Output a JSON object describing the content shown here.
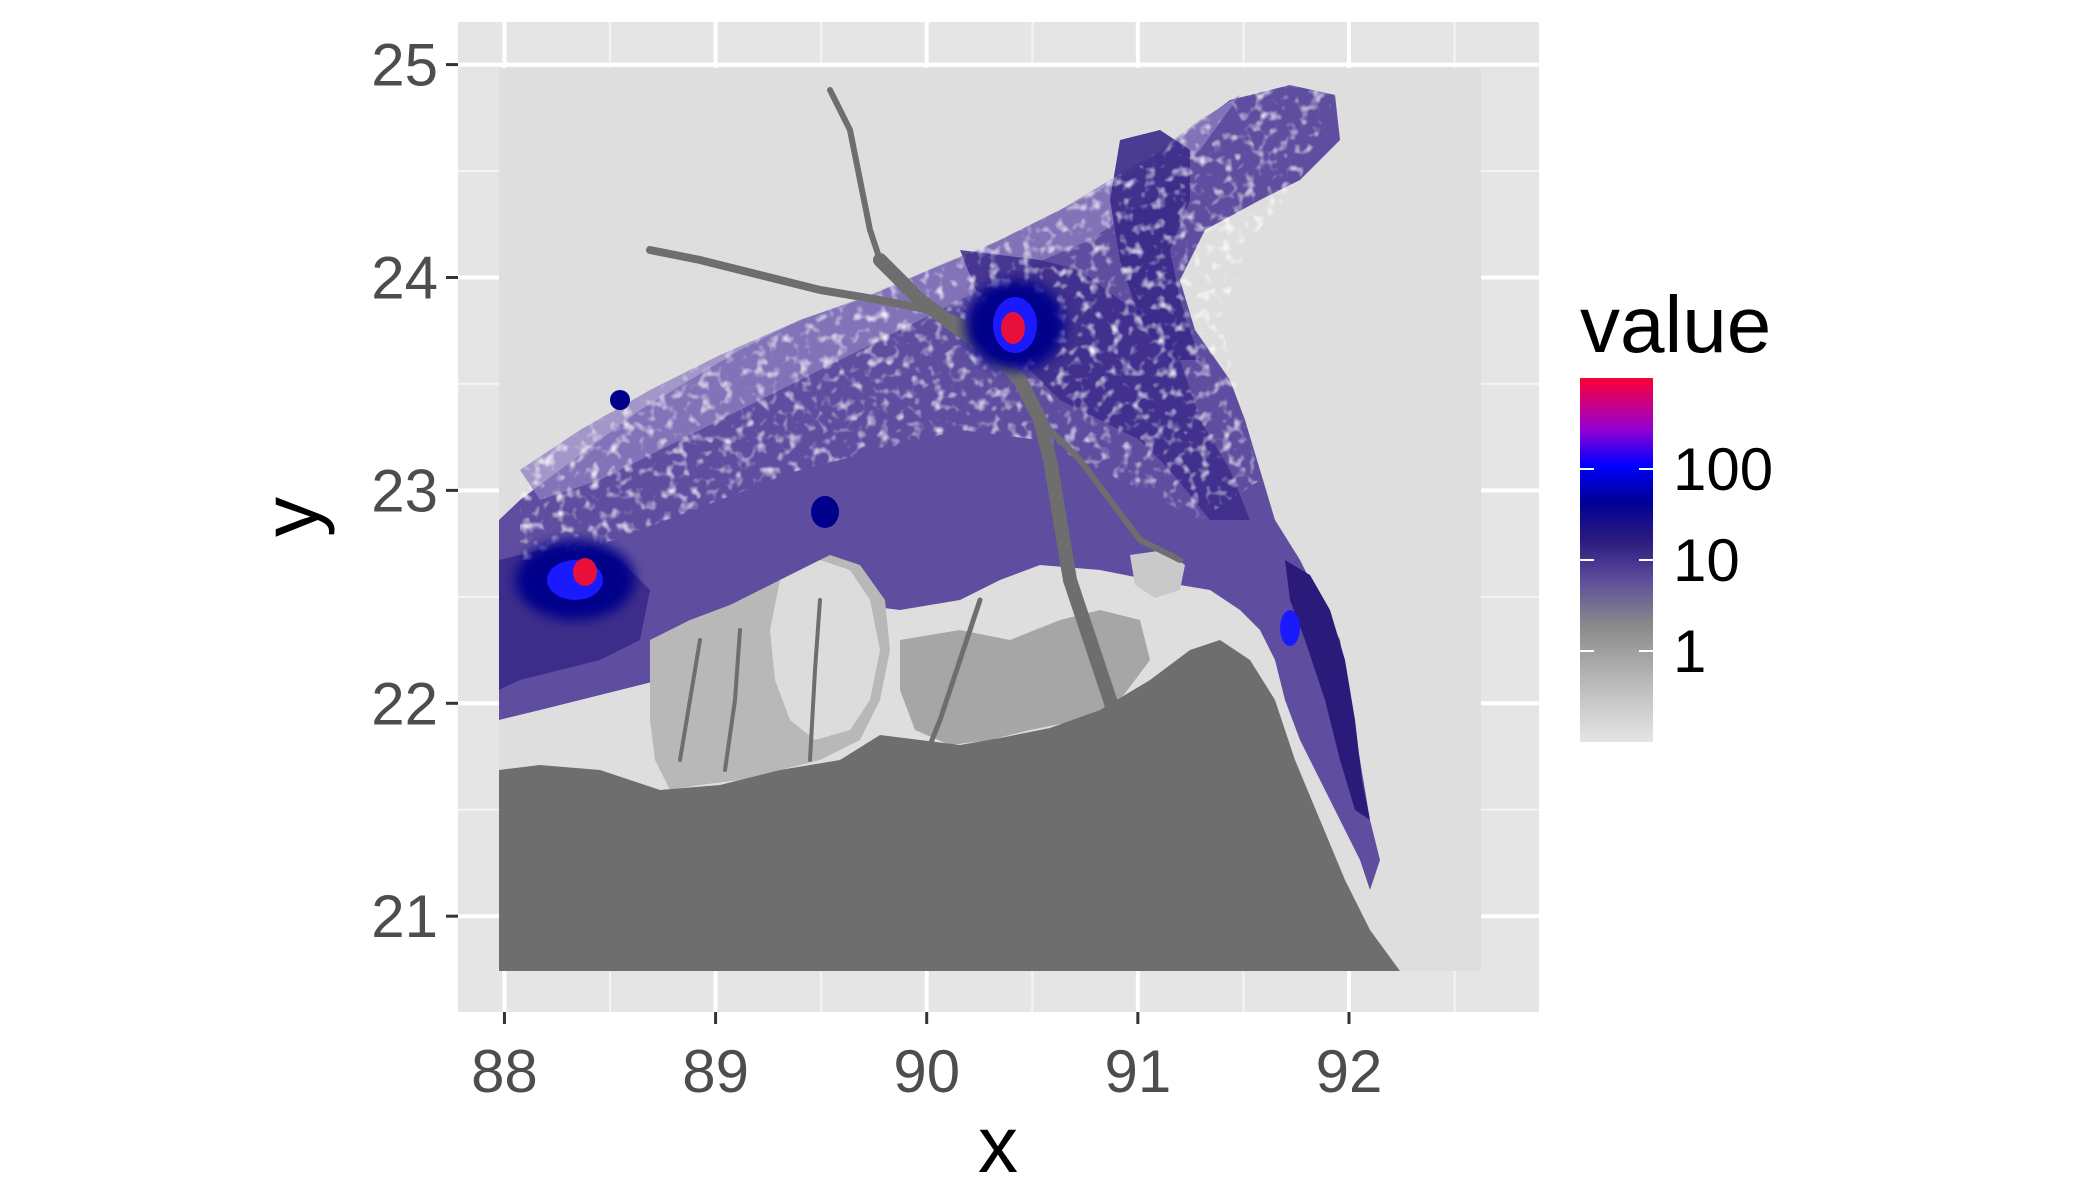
{
  "chart_data": {
    "type": "heatmap",
    "plot_kind": "raster map",
    "xlabel": "x",
    "ylabel": "y",
    "x_ticks": [
      88,
      89,
      90,
      91,
      92
    ],
    "y_ticks": [
      21,
      22,
      23,
      24,
      25
    ],
    "xlim": [
      87.78,
      92.9
    ],
    "ylim": [
      20.55,
      25.2
    ],
    "raster_extent": {
      "x": [
        88.0,
        92.68
      ],
      "y": [
        20.74,
        25.0
      ]
    },
    "grid": true,
    "panel_background": "#e5e5e5",
    "grid_color": "#ffffff",
    "legend": {
      "title": "value",
      "position": "right",
      "scale": "log10",
      "labels": [
        "1",
        "10",
        "100"
      ],
      "label_values": [
        1,
        10,
        100
      ],
      "range": [
        0.1,
        1000
      ],
      "colors": [
        "#e5e5e5",
        "#bdbdbd",
        "#8a8a8a",
        "#5b4b9a",
        "#2d1c7e",
        "#000096",
        "#0000ff",
        "#9400d3",
        "#ff0033"
      ],
      "color_stops": [
        0,
        0.15,
        0.32,
        0.45,
        0.55,
        0.66,
        0.76,
        0.86,
        1
      ]
    },
    "colors": {
      "sea": "#6e6e6e",
      "no_data_land": "#dedede",
      "low": "#d9d9d9",
      "mid": "#6a5aa8",
      "high": "#00008b",
      "peak": "#e8103a"
    },
    "hotspots": [
      {
        "x": 90.42,
        "y": 23.75,
        "value": 1000
      },
      {
        "x": 88.38,
        "y": 22.55,
        "value": 1000
      },
      {
        "x": 91.82,
        "y": 22.35,
        "value": 150
      }
    ]
  }
}
